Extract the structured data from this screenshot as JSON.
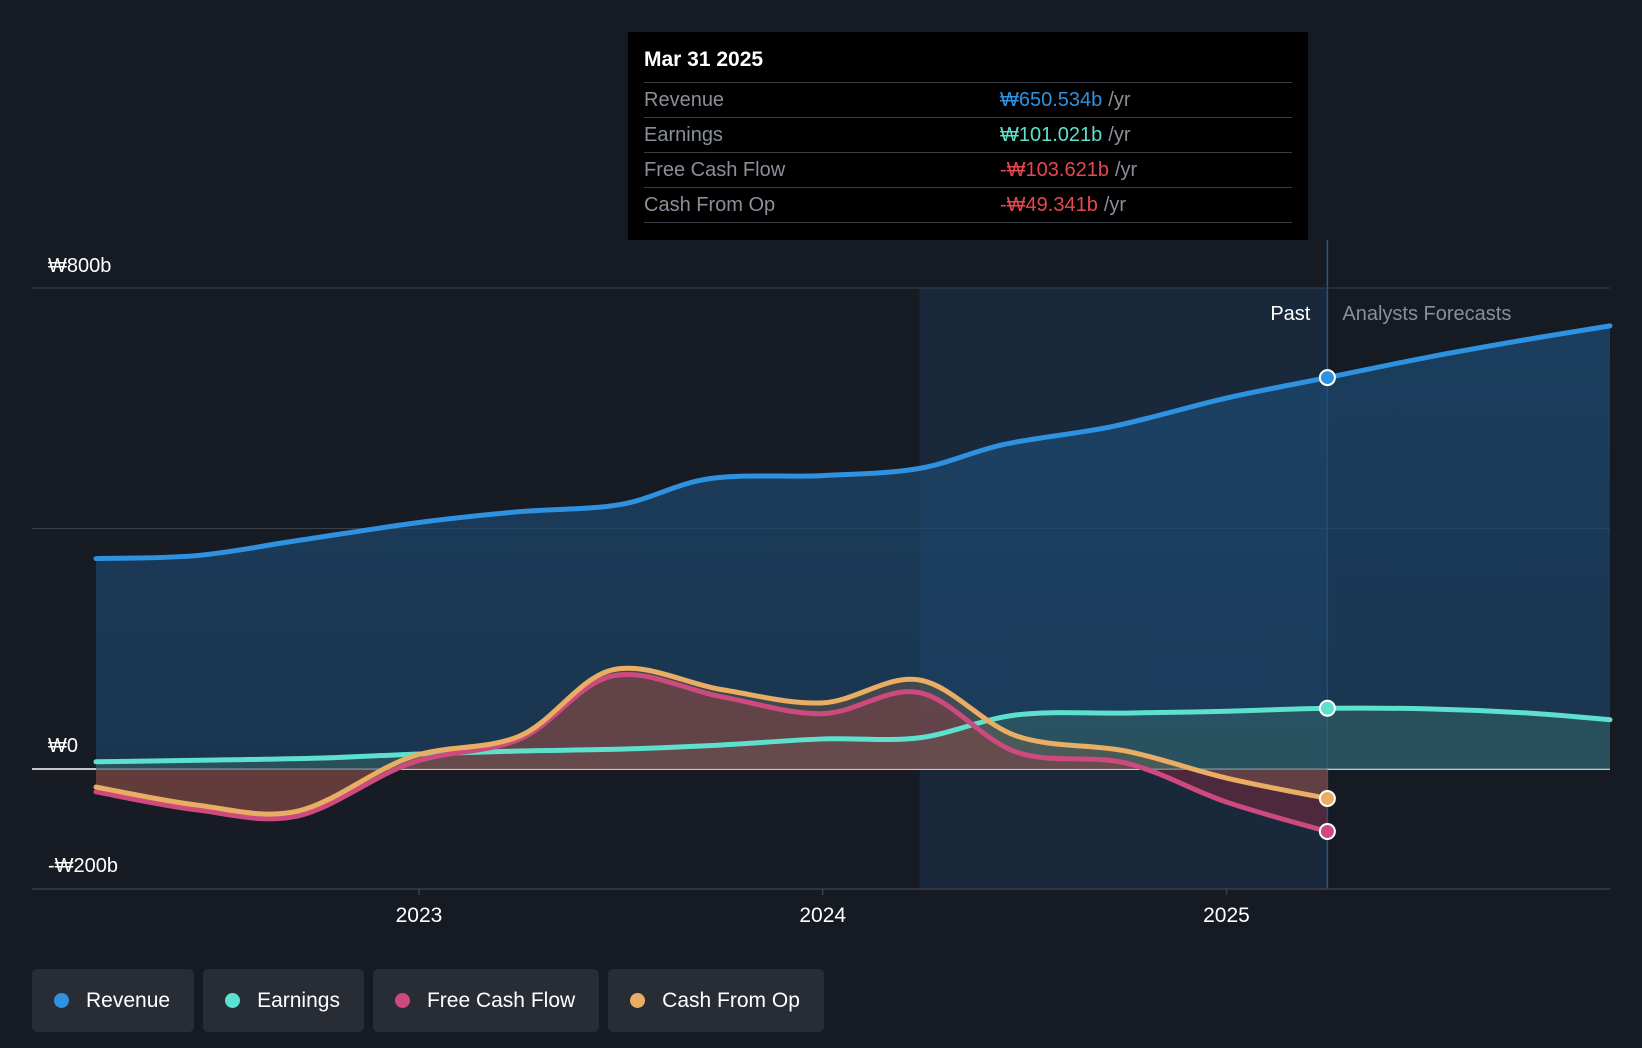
{
  "colors": {
    "revenue": "#2e92e0",
    "earnings": "#5ee0cf",
    "fcf": "#cc4a7e",
    "cfo": "#e9ae63",
    "negative": "#e8474f"
  },
  "tooltip": {
    "date": "Mar 31 2025",
    "rows": [
      {
        "label": "Revenue",
        "value": "₩650.534b",
        "unit": "/yr"
      },
      {
        "label": "Earnings",
        "value": "₩101.021b",
        "unit": "/yr"
      },
      {
        "label": "Free Cash Flow",
        "value": "-₩103.621b",
        "unit": "/yr"
      },
      {
        "label": "Cash From Op",
        "value": "-₩49.341b",
        "unit": "/yr"
      }
    ]
  },
  "legend": [
    {
      "label": "Revenue",
      "icon": "revenue-dot"
    },
    {
      "label": "Earnings",
      "icon": "earnings-dot"
    },
    {
      "label": "Free Cash Flow",
      "icon": "fcf-dot"
    },
    {
      "label": "Cash From Op",
      "icon": "cfo-dot"
    }
  ],
  "chart_data": {
    "type": "area",
    "title": "",
    "xlabel": "",
    "ylabel": "",
    "unit": "₩ billions",
    "x_range": [
      2022.2,
      2025.95
    ],
    "ylim": [
      -200,
      800
    ],
    "y_tick_labels": [
      "₩800b",
      "₩0",
      "-₩200b"
    ],
    "y_tick_values": [
      800,
      0,
      -200
    ],
    "x_tick_labels": [
      "2023",
      "2024",
      "2025"
    ],
    "x_tick_values": [
      2023.0,
      2024.0,
      2025.0
    ],
    "past_label": "Past",
    "forecast_label": "Analysts Forecasts",
    "past_shade_start": 2024.24,
    "forecast_start": 2025.25,
    "series": [
      {
        "name": "Revenue",
        "x": [
          2022.2,
          2022.45,
          2022.7,
          2023.0,
          2023.25,
          2023.5,
          2023.72,
          2024.0,
          2024.24,
          2024.45,
          2024.72,
          2025.0,
          2025.25,
          2025.5,
          2025.75,
          2025.95
        ],
        "values": [
          350,
          355,
          380,
          410,
          428,
          440,
          483,
          488,
          500,
          540,
          570,
          617,
          651,
          685,
          715,
          737
        ]
      },
      {
        "name": "Earnings",
        "x": [
          2022.2,
          2022.5,
          2022.75,
          2023.0,
          2023.25,
          2023.5,
          2023.75,
          2024.0,
          2024.24,
          2024.48,
          2024.75,
          2025.0,
          2025.25,
          2025.5,
          2025.75,
          2025.95
        ],
        "values": [
          12,
          15,
          18,
          25,
          30,
          33,
          40,
          50,
          52,
          90,
          93,
          96,
          101,
          100,
          93,
          82
        ]
      },
      {
        "name": "Free Cash Flow",
        "x": [
          2022.2,
          2022.45,
          2022.7,
          2022.98,
          2023.25,
          2023.48,
          2023.75,
          2024.0,
          2024.24,
          2024.48,
          2024.75,
          2025.0,
          2025.25
        ],
        "values": [
          -38,
          -68,
          -78,
          10,
          50,
          155,
          120,
          92,
          127,
          28,
          10,
          -55,
          -104
        ]
      },
      {
        "name": "Cash From Op",
        "x": [
          2022.2,
          2022.45,
          2022.7,
          2022.98,
          2023.25,
          2023.48,
          2023.75,
          2024.0,
          2024.24,
          2024.48,
          2024.75,
          2025.0,
          2025.25
        ],
        "values": [
          -30,
          -60,
          -70,
          20,
          55,
          165,
          132,
          110,
          148,
          55,
          30,
          -15,
          -49
        ]
      }
    ]
  }
}
